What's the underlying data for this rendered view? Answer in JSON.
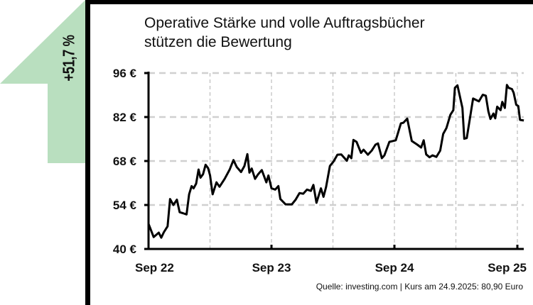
{
  "badge": {
    "text": "+51,7 %",
    "color": "#b9dfbf"
  },
  "title_line1": "Operative Stärke und volle Auftragsbücher",
  "title_line2": "stützen die Bewertung",
  "source": "Quelle: investing.com  |  Kurs am 24.9.2025: 80,90 Euro",
  "chart_data": {
    "type": "line",
    "title": "Operative Stärke und volle Auftragsbücher stützen die Bewertung",
    "xlabel": "",
    "ylabel": "",
    "ylim": [
      40,
      96
    ],
    "yticks": [
      96,
      82,
      68,
      54,
      40
    ],
    "ytick_labels": [
      "96 €",
      "82 €",
      "68 €",
      "54 €",
      "40 €"
    ],
    "xticks_months": [
      0,
      12,
      24,
      36
    ],
    "xtick_labels": [
      "Sep 22",
      "Sep 23",
      "Sep 24",
      "Sep 25"
    ],
    "x_unit": "months since Sep 2022",
    "grid": true,
    "series": [
      {
        "name": "Kurs",
        "x": [
          0,
          0.5,
          1.0,
          1.24,
          1.49,
          1.86,
          2.1,
          2.43,
          2.77,
          3.04,
          3.34,
          3.71,
          3.96,
          4.2,
          4.4,
          4.65,
          4.88,
          5.07,
          5.32,
          5.57,
          5.82,
          6.01,
          6.26,
          6.63,
          6.93,
          7.43,
          7.92,
          8.29,
          8.61,
          9.03,
          9.36,
          9.65,
          9.85,
          10.07,
          10.4,
          10.7,
          11.06,
          11.5,
          11.7,
          12.0,
          12.37,
          12.67,
          12.87,
          13.37,
          13.99,
          14.36,
          14.73,
          15.1,
          15.47,
          15.84,
          16.09,
          16.39,
          16.83,
          17.08,
          17.33,
          17.7,
          18.07,
          18.44,
          18.81,
          19.36,
          19.55,
          19.8,
          20.0,
          20.3,
          20.74,
          20.99,
          21.41,
          21.78,
          22.15,
          22.4,
          22.77,
          23.02,
          23.51,
          23.89,
          24.13,
          24.63,
          24.88,
          25.25,
          25.69,
          26.24,
          26.61,
          26.86,
          27.1,
          27.43,
          27.72,
          28.09,
          28.47,
          28.76,
          29.08,
          29.46,
          29.75,
          29.9,
          30.15,
          30.64,
          30.82,
          31.06,
          31.68,
          32.25,
          32.62,
          32.92,
          33.17,
          33.37,
          33.66,
          33.84,
          34.03,
          34.36,
          34.53,
          34.78,
          34.98,
          35.15,
          35.47,
          35.64,
          35.89,
          36.09,
          36.26,
          36.63
        ],
        "values": [
          48.0,
          43.8,
          45.2,
          43.6,
          45.3,
          47.2,
          55.9,
          54.0,
          55.7,
          51.7,
          51.4,
          51.0,
          57.4,
          60.0,
          59.3,
          60.8,
          65.3,
          62.7,
          63.8,
          66.8,
          65.7,
          63.4,
          57.4,
          61.2,
          59.8,
          62.3,
          65.3,
          68.3,
          66.1,
          64.5,
          66.4,
          70.2,
          64.3,
          65.6,
          62.3,
          63.8,
          65.1,
          61.2,
          63.4,
          59.3,
          58.9,
          60.0,
          55.9,
          54.2,
          54.2,
          55.7,
          57.8,
          57.6,
          58.9,
          58.5,
          60.4,
          54.7,
          59.3,
          56.6,
          59.7,
          66.4,
          67.9,
          70.0,
          70.1,
          68.1,
          69.8,
          68.9,
          74.7,
          74.1,
          70.6,
          71.6,
          70.0,
          71.3,
          73.2,
          73.6,
          68.9,
          69.8,
          74.1,
          74.4,
          74.6,
          80.0,
          80.2,
          81.5,
          74.4,
          73.2,
          72.3,
          74.6,
          70.1,
          69.2,
          69.8,
          69.3,
          71.3,
          76.6,
          78.5,
          82.7,
          84.2,
          91.3,
          92.1,
          84.9,
          75.1,
          75.3,
          87.9,
          87.0,
          89.1,
          88.8,
          83.8,
          81.4,
          83.1,
          81.6,
          85.3,
          84.2,
          86.8,
          84.9,
          92.2,
          91.3,
          90.9,
          89.7,
          85.9,
          85.5,
          81.1,
          80.9
        ]
      }
    ]
  }
}
